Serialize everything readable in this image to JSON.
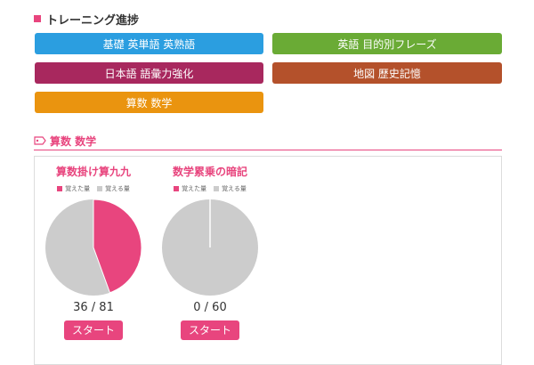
{
  "page": {
    "heading": "トレーニング進捗"
  },
  "categories": [
    {
      "label": "基礎 英単語 英熟語",
      "color": "#2b9ee0"
    },
    {
      "label": "英語 目的別フレーズ",
      "color": "#6aab35"
    },
    {
      "label": "日本語 語彙力強化",
      "color": "#a8285e"
    },
    {
      "label": "地図 歴史記憶",
      "color": "#b4512b"
    },
    {
      "label": "算数 数学",
      "color": "#ea940f"
    }
  ],
  "section": {
    "title": "算数 数学",
    "icon": "tag-icon"
  },
  "cards": [
    {
      "title": "算数掛け算九九",
      "legend_learned": "覚えた量",
      "legend_remaining": "覚える量",
      "learned": 36,
      "total": 81,
      "count_text": "36 / 81",
      "start_label": "スタート"
    },
    {
      "title": "数学累乗の暗記",
      "legend_learned": "覚えた量",
      "legend_remaining": "覚える量",
      "learned": 0,
      "total": 60,
      "count_text": "0 / 60",
      "start_label": "スタート"
    }
  ],
  "colors": {
    "accent": "#e8457e",
    "remaining": "#cccccc"
  }
}
